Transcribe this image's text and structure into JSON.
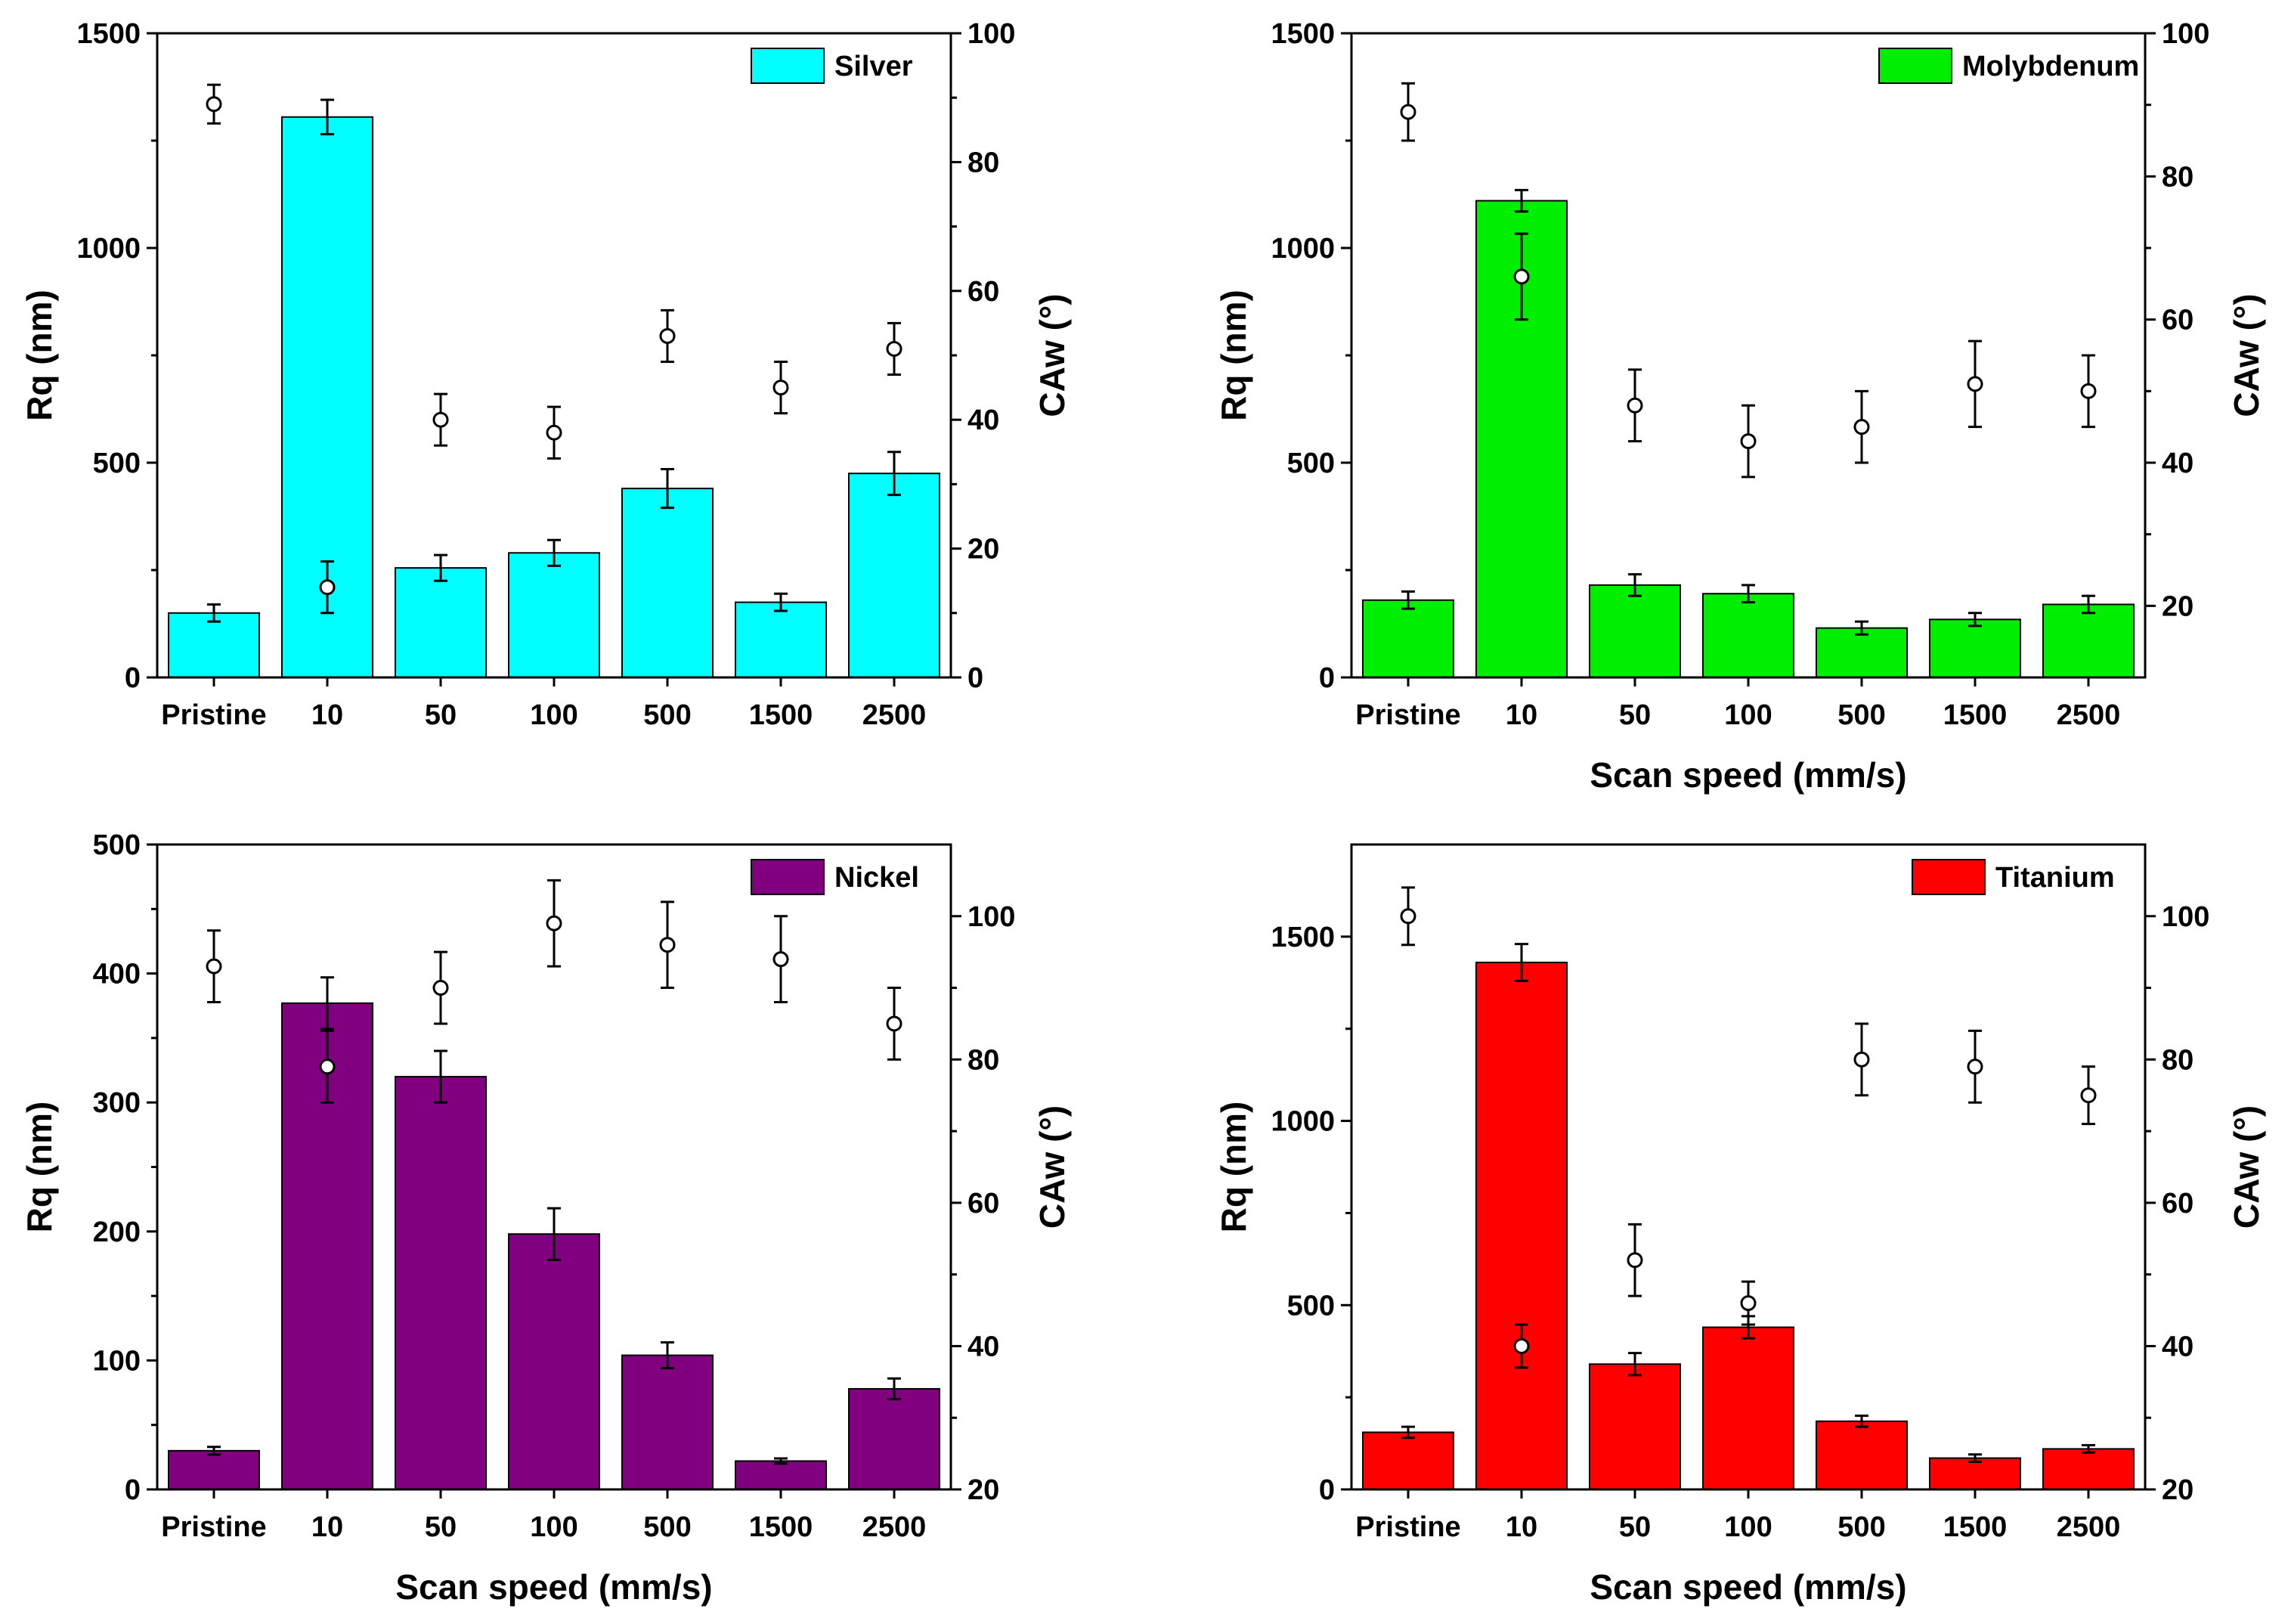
{
  "chart_data": [
    {
      "type": "bar",
      "legend": "Silver",
      "legend_position": "top-right",
      "color": "#00FFFF",
      "categories": [
        "Pristine",
        "10",
        "50",
        "100",
        "500",
        "1500",
        "2500"
      ],
      "xlabel": "",
      "ylabel": "Rq (nm)",
      "y2label": "CAw (°)",
      "ylim": [
        0,
        1500
      ],
      "yticks": [
        0,
        500,
        1000,
        1500
      ],
      "y2lim": [
        0,
        100
      ],
      "y2ticks": [
        0,
        20,
        40,
        60,
        80,
        100
      ],
      "rq": [
        150,
        1305,
        255,
        290,
        440,
        175,
        475
      ],
      "rq_err": [
        20,
        40,
        30,
        30,
        45,
        20,
        50
      ],
      "caw": [
        89,
        14,
        40,
        38,
        53,
        45,
        51
      ],
      "caw_err": [
        3,
        4,
        4,
        4,
        4,
        4,
        4
      ]
    },
    {
      "type": "bar",
      "legend": "Molybdenum",
      "legend_position": "top-right",
      "color": "#00EE00",
      "categories": [
        "Pristine",
        "10",
        "50",
        "100",
        "500",
        "1500",
        "2500"
      ],
      "xlabel": "Scan speed (mm/s)",
      "ylabel": "Rq (nm)",
      "y2label": "CAw (°)",
      "ylim": [
        0,
        1500
      ],
      "yticks": [
        0,
        500,
        1000,
        1500
      ],
      "y2lim": [
        10,
        100
      ],
      "y2ticks": [
        20,
        40,
        60,
        80,
        100
      ],
      "rq": [
        180,
        1110,
        215,
        195,
        115,
        135,
        170
      ],
      "rq_err": [
        20,
        25,
        25,
        20,
        15,
        15,
        20
      ],
      "caw": [
        89,
        66,
        48,
        43,
        45,
        51,
        50
      ],
      "caw_err": [
        4,
        6,
        5,
        5,
        5,
        6,
        5
      ]
    },
    {
      "type": "bar",
      "legend": "Nickel",
      "legend_position": "top-right",
      "color": "#800080",
      "categories": [
        "Pristine",
        "10",
        "50",
        "100",
        "500",
        "1500",
        "2500"
      ],
      "xlabel": "Scan speed (mm/s)",
      "ylabel": "Rq (nm)",
      "y2label": "CAw (°)",
      "ylim": [
        0,
        500
      ],
      "yticks": [
        0,
        100,
        200,
        300,
        400,
        500
      ],
      "y2lim": [
        20,
        110
      ],
      "y2ticks": [
        20,
        40,
        60,
        80,
        100
      ],
      "rq": [
        30,
        377,
        320,
        198,
        104,
        22,
        78
      ],
      "rq_err": [
        3,
        20,
        20,
        20,
        10,
        2,
        8
      ],
      "caw": [
        93,
        79,
        90,
        99,
        96,
        94,
        85
      ],
      "caw_err": [
        5,
        5,
        5,
        6,
        6,
        6,
        5
      ]
    },
    {
      "type": "bar",
      "legend": "Titanium",
      "legend_position": "top-right",
      "color": "#FF0000",
      "categories": [
        "Pristine",
        "10",
        "50",
        "100",
        "500",
        "1500",
        "2500"
      ],
      "xlabel": "Scan speed (mm/s)",
      "ylabel": "Rq (nm)",
      "y2label": "CAw (°)",
      "ylim": [
        0,
        1750
      ],
      "yticks": [
        0,
        500,
        1000,
        1500
      ],
      "y2lim": [
        20,
        110
      ],
      "y2ticks": [
        20,
        40,
        60,
        80,
        100
      ],
      "rq": [
        155,
        1430,
        340,
        440,
        185,
        85,
        110
      ],
      "rq_err": [
        15,
        50,
        30,
        30,
        15,
        10,
        10
      ],
      "caw": [
        100,
        40,
        52,
        46,
        80,
        79,
        75
      ],
      "caw_err": [
        4,
        3,
        5,
        3,
        5,
        5,
        4
      ]
    }
  ]
}
